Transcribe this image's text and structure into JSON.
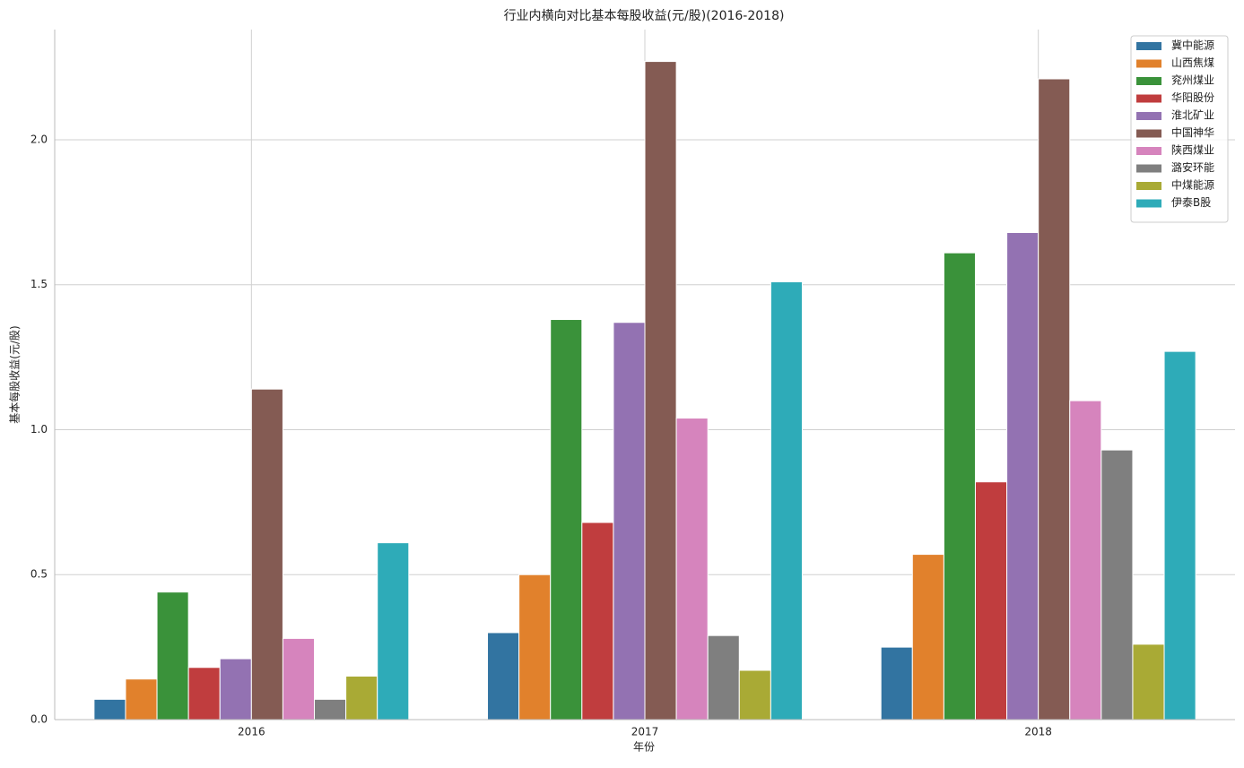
{
  "chart_data": {
    "type": "bar",
    "title": "行业内横向对比基本每股收益(元/股)(2016-2018)",
    "x_label": "年份",
    "y_label": "基本每股收益(元/股)",
    "categories": [
      "2016",
      "2017",
      "2018"
    ],
    "series": [
      {
        "name": "冀中能源",
        "color": "#3274a1",
        "values": [
          0.07,
          0.3,
          0.25
        ]
      },
      {
        "name": "山西焦煤",
        "color": "#e1812c",
        "values": [
          0.14,
          0.5,
          0.57
        ]
      },
      {
        "name": "兖州煤业",
        "color": "#3a923a",
        "values": [
          0.44,
          1.38,
          1.61
        ]
      },
      {
        "name": "华阳股份",
        "color": "#c03d3e",
        "values": [
          0.18,
          0.68,
          0.82
        ]
      },
      {
        "name": "淮北矿业",
        "color": "#9372b2",
        "values": [
          0.21,
          1.37,
          1.68
        ]
      },
      {
        "name": "中国神华",
        "color": "#845b53",
        "values": [
          1.14,
          2.27,
          2.21
        ]
      },
      {
        "name": "陕西煤业",
        "color": "#d684bd",
        "values": [
          0.28,
          1.04,
          1.1
        ]
      },
      {
        "name": "潞安环能",
        "color": "#7f7f7f",
        "values": [
          0.07,
          0.29,
          0.93
        ]
      },
      {
        "name": "中煤能源",
        "color": "#a9aa35",
        "values": [
          0.15,
          0.17,
          0.26
        ]
      },
      {
        "name": "伊泰B股",
        "color": "#2eabb8",
        "values": [
          0.61,
          1.51,
          1.27
        ]
      }
    ],
    "ylim": [
      0,
      2.38
    ],
    "yticks": [
      {
        "value": 0,
        "label": "0.0"
      },
      0.5,
      {
        "value": 1,
        "label": "1.0"
      },
      1.5,
      {
        "value": 2,
        "label": "2.0"
      }
    ],
    "grid": true,
    "legend": "upper right"
  }
}
